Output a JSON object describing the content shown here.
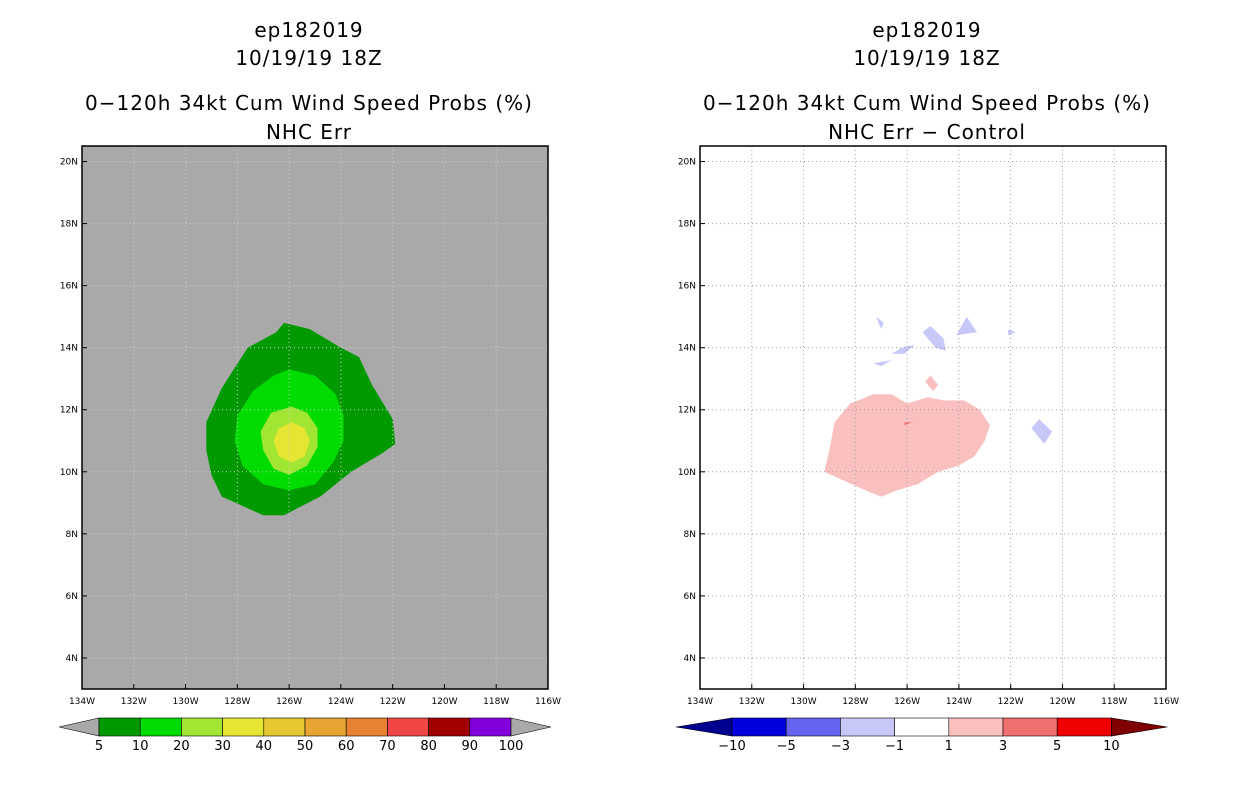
{
  "chart_data": [
    {
      "type": "heatmap",
      "title_lines": [
        "ep182019",
        "10/19/19 18Z",
        "0−120h 34kt Cum Wind Speed Probs (%)",
        "NHC Err"
      ],
      "x_ticks": [
        "134W",
        "132W",
        "130W",
        "128W",
        "126W",
        "124W",
        "122W",
        "120W",
        "118W",
        "116W"
      ],
      "y_ticks": [
        "4N",
        "6N",
        "8N",
        "10N",
        "12N",
        "14N",
        "16N",
        "18N",
        "20N"
      ],
      "xlim": [
        -134,
        -116
      ],
      "ylim": [
        3,
        20.5
      ],
      "background_color": "#a9a9a9",
      "grid": true,
      "colorbar": {
        "labels": [
          "5",
          "10",
          "20",
          "30",
          "40",
          "50",
          "60",
          "70",
          "80",
          "90",
          "100"
        ],
        "colors": [
          "#009a00",
          "#00dc00",
          "#a0e632",
          "#e6e632",
          "#e6c832",
          "#e6a432",
          "#e68232",
          "#f04646",
          "#a00000",
          "#8200dc"
        ],
        "under_color": "#a9a9a9",
        "over_color": "#a9a9a9"
      },
      "contours": [
        {
          "level": 5,
          "color": "#009a00",
          "lonlat": [
            [
              -126.2,
              14.8
            ],
            [
              -125.2,
              14.6
            ],
            [
              -124.0,
              14.0
            ],
            [
              -123.3,
              13.7
            ],
            [
              -122.8,
              12.8
            ],
            [
              -122.0,
              11.7
            ],
            [
              -121.9,
              10.9
            ],
            [
              -122.4,
              10.6
            ],
            [
              -123.6,
              10.0
            ],
            [
              -124.8,
              9.2
            ],
            [
              -126.2,
              8.6
            ],
            [
              -127.0,
              8.6
            ],
            [
              -127.8,
              8.9
            ],
            [
              -128.6,
              9.2
            ],
            [
              -129.0,
              9.9
            ],
            [
              -129.2,
              10.7
            ],
            [
              -129.2,
              11.6
            ],
            [
              -128.6,
              12.7
            ],
            [
              -127.6,
              14.0
            ],
            [
              -126.5,
              14.5
            ]
          ]
        },
        {
          "level": 10,
          "color": "#00dc00",
          "lonlat": [
            [
              -126.0,
              13.3
            ],
            [
              -125.0,
              13.1
            ],
            [
              -124.2,
              12.5
            ],
            [
              -123.9,
              11.8
            ],
            [
              -123.9,
              11.0
            ],
            [
              -124.3,
              10.3
            ],
            [
              -125.0,
              9.6
            ],
            [
              -126.0,
              9.4
            ],
            [
              -127.0,
              9.6
            ],
            [
              -127.8,
              10.2
            ],
            [
              -128.1,
              11.0
            ],
            [
              -128.0,
              11.8
            ],
            [
              -127.4,
              12.6
            ],
            [
              -126.6,
              13.1
            ]
          ]
        },
        {
          "level": 20,
          "color": "#a0e632",
          "lonlat": [
            [
              -125.9,
              12.1
            ],
            [
              -125.3,
              11.9
            ],
            [
              -124.9,
              11.4
            ],
            [
              -124.9,
              10.8
            ],
            [
              -125.3,
              10.2
            ],
            [
              -126.0,
              9.9
            ],
            [
              -126.6,
              10.1
            ],
            [
              -127.0,
              10.7
            ],
            [
              -127.1,
              11.3
            ],
            [
              -126.7,
              11.9
            ]
          ]
        },
        {
          "level": 30,
          "color": "#e6e632",
          "lonlat": [
            [
              -125.9,
              11.6
            ],
            [
              -125.4,
              11.4
            ],
            [
              -125.2,
              11.0
            ],
            [
              -125.4,
              10.5
            ],
            [
              -125.9,
              10.3
            ],
            [
              -126.4,
              10.5
            ],
            [
              -126.6,
              11.0
            ],
            [
              -126.4,
              11.4
            ]
          ]
        }
      ]
    },
    {
      "type": "heatmap",
      "title_lines": [
        "ep182019",
        "10/19/19 18Z",
        "0−120h 34kt Cum Wind Speed Probs (%)",
        "NHC Err − Control"
      ],
      "x_ticks": [
        "134W",
        "132W",
        "130W",
        "128W",
        "126W",
        "124W",
        "122W",
        "120W",
        "118W",
        "116W"
      ],
      "y_ticks": [
        "4N",
        "6N",
        "8N",
        "10N",
        "12N",
        "14N",
        "16N",
        "18N",
        "20N"
      ],
      "xlim": [
        -134,
        -116
      ],
      "ylim": [
        3,
        20.5
      ],
      "background_color": "#ffffff",
      "grid": true,
      "colorbar": {
        "labels": [
          "−10",
          "−5",
          "−3",
          "−1",
          "1",
          "3",
          "5",
          "10"
        ],
        "colors": [
          "#0000dc",
          "#6464f0",
          "#c8c8f8",
          "#ffffff",
          "#fac0c0",
          "#f07070",
          "#f00000"
        ],
        "under_color": "#000090",
        "over_color": "#800000"
      },
      "contours": [
        {
          "level": 1,
          "color": "#fac0c0",
          "lonlat": [
            [
              -127.3,
              12.5
            ],
            [
              -126.6,
              12.5
            ],
            [
              -126.0,
              12.2
            ],
            [
              -125.2,
              12.4
            ],
            [
              -124.6,
              12.3
            ],
            [
              -123.8,
              12.3
            ],
            [
              -123.2,
              12.0
            ],
            [
              -122.8,
              11.5
            ],
            [
              -123.0,
              11.0
            ],
            [
              -123.4,
              10.5
            ],
            [
              -124.0,
              10.2
            ],
            [
              -124.8,
              10.0
            ],
            [
              -125.6,
              9.6
            ],
            [
              -126.4,
              9.4
            ],
            [
              -127.0,
              9.2
            ],
            [
              -127.6,
              9.4
            ],
            [
              -128.4,
              9.7
            ],
            [
              -129.2,
              10.0
            ],
            [
              -129.0,
              10.7
            ],
            [
              -128.8,
              11.6
            ],
            [
              -128.2,
              12.2
            ]
          ]
        },
        {
          "level": 3,
          "color": "#f07070",
          "lonlat": [
            [
              -126.1,
              11.6
            ],
            [
              -125.8,
              11.6
            ],
            [
              -126.1,
              11.5
            ]
          ]
        },
        {
          "level": 1,
          "color": "#fac0c0",
          "lonlat": [
            [
              -125.1,
              13.1
            ],
            [
              -124.8,
              12.8
            ],
            [
              -125.0,
              12.6
            ],
            [
              -125.3,
              12.9
            ]
          ]
        },
        {
          "level": -1,
          "color": "#c8c8f8",
          "lonlat": [
            [
              -127.2,
              15.0
            ],
            [
              -126.9,
              14.8
            ],
            [
              -127.0,
              14.6
            ]
          ]
        },
        {
          "level": -1,
          "color": "#c8c8f8",
          "lonlat": [
            [
              -125.1,
              14.7
            ],
            [
              -124.6,
              14.3
            ],
            [
              -124.5,
              13.9
            ],
            [
              -124.9,
              14.0
            ],
            [
              -125.4,
              14.5
            ]
          ]
        },
        {
          "level": -1,
          "color": "#c8c8f8",
          "lonlat": [
            [
              -123.7,
              15.0
            ],
            [
              -123.3,
              14.5
            ],
            [
              -124.1,
              14.4
            ]
          ]
        },
        {
          "level": -1,
          "color": "#c8c8f8",
          "lonlat": [
            [
              -122.1,
              14.6
            ],
            [
              -121.8,
              14.5
            ],
            [
              -122.1,
              14.4
            ]
          ]
        },
        {
          "level": -1,
          "color": "#c8c8f8",
          "lonlat": [
            [
              -126.2,
              14.0
            ],
            [
              -125.7,
              14.1
            ],
            [
              -126.1,
              13.8
            ],
            [
              -126.6,
              13.8
            ]
          ]
        },
        {
          "level": -1,
          "color": "#c8c8f8",
          "lonlat": [
            [
              -127.3,
              13.5
            ],
            [
              -126.6,
              13.6
            ],
            [
              -127.0,
              13.4
            ]
          ]
        },
        {
          "level": -1,
          "color": "#c8c8f8",
          "lonlat": [
            [
              -120.9,
              11.7
            ],
            [
              -120.4,
              11.3
            ],
            [
              -120.7,
              10.9
            ],
            [
              -121.2,
              11.4
            ]
          ]
        }
      ]
    }
  ]
}
